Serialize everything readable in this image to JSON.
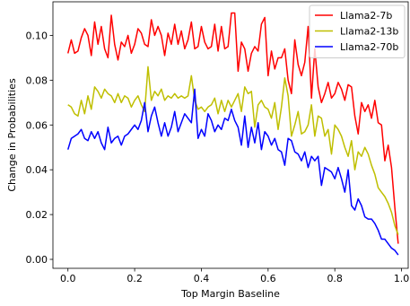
{
  "chart_data": {
    "type": "line",
    "xlabel": "Top Margin Baseline",
    "ylabel": "Change in Probabilities",
    "xlim": [
      -0.045,
      1.02
    ],
    "ylim": [
      -0.004,
      0.115
    ],
    "xticks": [
      0.0,
      0.2,
      0.4,
      0.6,
      0.8,
      1.0
    ],
    "xtick_labels": [
      "0.0",
      "0.2",
      "0.4",
      "0.6",
      "0.8",
      "1.0"
    ],
    "yticks": [
      0.0,
      0.02,
      0.04,
      0.06,
      0.08,
      0.1
    ],
    "ytick_labels": [
      "0.00",
      "0.02",
      "0.04",
      "0.06",
      "0.08",
      "0.10"
    ],
    "grid": false,
    "legend_position": "top-right",
    "x": [
      0.0,
      0.01,
      0.02,
      0.03,
      0.04,
      0.05,
      0.06,
      0.07,
      0.08,
      0.09,
      0.1,
      0.11,
      0.12,
      0.13,
      0.14,
      0.15,
      0.16,
      0.17,
      0.18,
      0.19,
      0.2,
      0.21,
      0.22,
      0.23,
      0.24,
      0.25,
      0.26,
      0.27,
      0.28,
      0.29,
      0.3,
      0.31,
      0.32,
      0.33,
      0.34,
      0.35,
      0.36,
      0.37,
      0.38,
      0.39,
      0.4,
      0.41,
      0.42,
      0.43,
      0.44,
      0.45,
      0.46,
      0.47,
      0.48,
      0.49,
      0.5,
      0.51,
      0.52,
      0.53,
      0.54,
      0.55,
      0.56,
      0.57,
      0.58,
      0.59,
      0.6,
      0.61,
      0.62,
      0.63,
      0.64,
      0.65,
      0.66,
      0.67,
      0.68,
      0.69,
      0.7,
      0.71,
      0.72,
      0.73,
      0.74,
      0.75,
      0.76,
      0.77,
      0.78,
      0.79,
      0.8,
      0.81,
      0.82,
      0.83,
      0.84,
      0.85,
      0.86,
      0.87,
      0.88,
      0.89,
      0.9,
      0.91,
      0.92,
      0.93,
      0.94,
      0.95,
      0.96,
      0.97,
      0.98,
      0.99
    ],
    "series": [
      {
        "name": "Llama2-7b",
        "color": "#ff0000",
        "values": [
          0.092,
          0.098,
          0.092,
          0.093,
          0.099,
          0.103,
          0.1,
          0.091,
          0.106,
          0.096,
          0.104,
          0.094,
          0.09,
          0.109,
          0.096,
          0.089,
          0.097,
          0.095,
          0.1,
          0.092,
          0.096,
          0.103,
          0.101,
          0.096,
          0.095,
          0.107,
          0.1,
          0.104,
          0.1,
          0.091,
          0.101,
          0.096,
          0.105,
          0.096,
          0.102,
          0.094,
          0.098,
          0.106,
          0.094,
          0.095,
          0.104,
          0.097,
          0.094,
          0.095,
          0.105,
          0.093,
          0.104,
          0.094,
          0.095,
          0.11,
          0.11,
          0.084,
          0.097,
          0.094,
          0.084,
          0.092,
          0.095,
          0.093,
          0.105,
          0.108,
          0.082,
          0.093,
          0.085,
          0.09,
          0.09,
          0.094,
          0.08,
          0.074,
          0.098,
          0.087,
          0.082,
          0.088,
          0.104,
          0.072,
          0.094,
          0.077,
          0.07,
          0.074,
          0.079,
          0.072,
          0.074,
          0.079,
          0.076,
          0.071,
          0.078,
          0.077,
          0.064,
          0.056,
          0.07,
          0.066,
          0.069,
          0.063,
          0.071,
          0.061,
          0.06,
          0.044,
          0.051,
          0.041,
          0.023,
          0.007
        ]
      },
      {
        "name": "Llama2-13b",
        "color": "#bfbf00",
        "values": [
          0.069,
          0.068,
          0.065,
          0.064,
          0.071,
          0.065,
          0.073,
          0.067,
          0.077,
          0.075,
          0.072,
          0.076,
          0.074,
          0.073,
          0.07,
          0.074,
          0.07,
          0.073,
          0.072,
          0.068,
          0.071,
          0.073,
          0.069,
          0.066,
          0.086,
          0.071,
          0.075,
          0.073,
          0.076,
          0.071,
          0.073,
          0.072,
          0.074,
          0.072,
          0.073,
          0.072,
          0.073,
          0.082,
          0.071,
          0.067,
          0.068,
          0.066,
          0.068,
          0.069,
          0.072,
          0.065,
          0.071,
          0.066,
          0.071,
          0.068,
          0.071,
          0.074,
          0.066,
          0.077,
          0.074,
          0.075,
          0.059,
          0.069,
          0.071,
          0.068,
          0.067,
          0.063,
          0.07,
          0.058,
          0.068,
          0.081,
          0.073,
          0.055,
          0.06,
          0.066,
          0.056,
          0.057,
          0.06,
          0.069,
          0.055,
          0.064,
          0.063,
          0.055,
          0.058,
          0.047,
          0.06,
          0.058,
          0.055,
          0.05,
          0.046,
          0.053,
          0.04,
          0.048,
          0.046,
          0.05,
          0.047,
          0.042,
          0.038,
          0.032,
          0.03,
          0.028,
          0.025,
          0.021,
          0.015,
          0.011
        ]
      },
      {
        "name": "Llama2-70b",
        "color": "#0000ff",
        "values": [
          0.049,
          0.054,
          0.055,
          0.056,
          0.058,
          0.054,
          0.053,
          0.057,
          0.054,
          0.057,
          0.052,
          0.049,
          0.059,
          0.052,
          0.054,
          0.055,
          0.051,
          0.055,
          0.056,
          0.058,
          0.06,
          0.058,
          0.062,
          0.07,
          0.057,
          0.064,
          0.068,
          0.061,
          0.055,
          0.061,
          0.055,
          0.059,
          0.066,
          0.057,
          0.061,
          0.065,
          0.063,
          0.061,
          0.076,
          0.054,
          0.058,
          0.055,
          0.065,
          0.062,
          0.057,
          0.06,
          0.058,
          0.063,
          0.062,
          0.067,
          0.062,
          0.059,
          0.051,
          0.064,
          0.05,
          0.059,
          0.052,
          0.061,
          0.049,
          0.057,
          0.055,
          0.051,
          0.054,
          0.049,
          0.048,
          0.042,
          0.054,
          0.053,
          0.048,
          0.047,
          0.044,
          0.048,
          0.041,
          0.046,
          0.044,
          0.046,
          0.033,
          0.041,
          0.04,
          0.039,
          0.036,
          0.041,
          0.036,
          0.03,
          0.04,
          0.024,
          0.022,
          0.027,
          0.024,
          0.019,
          0.018,
          0.018,
          0.016,
          0.013,
          0.009,
          0.009,
          0.007,
          0.005,
          0.004,
          0.002
        ]
      }
    ]
  }
}
